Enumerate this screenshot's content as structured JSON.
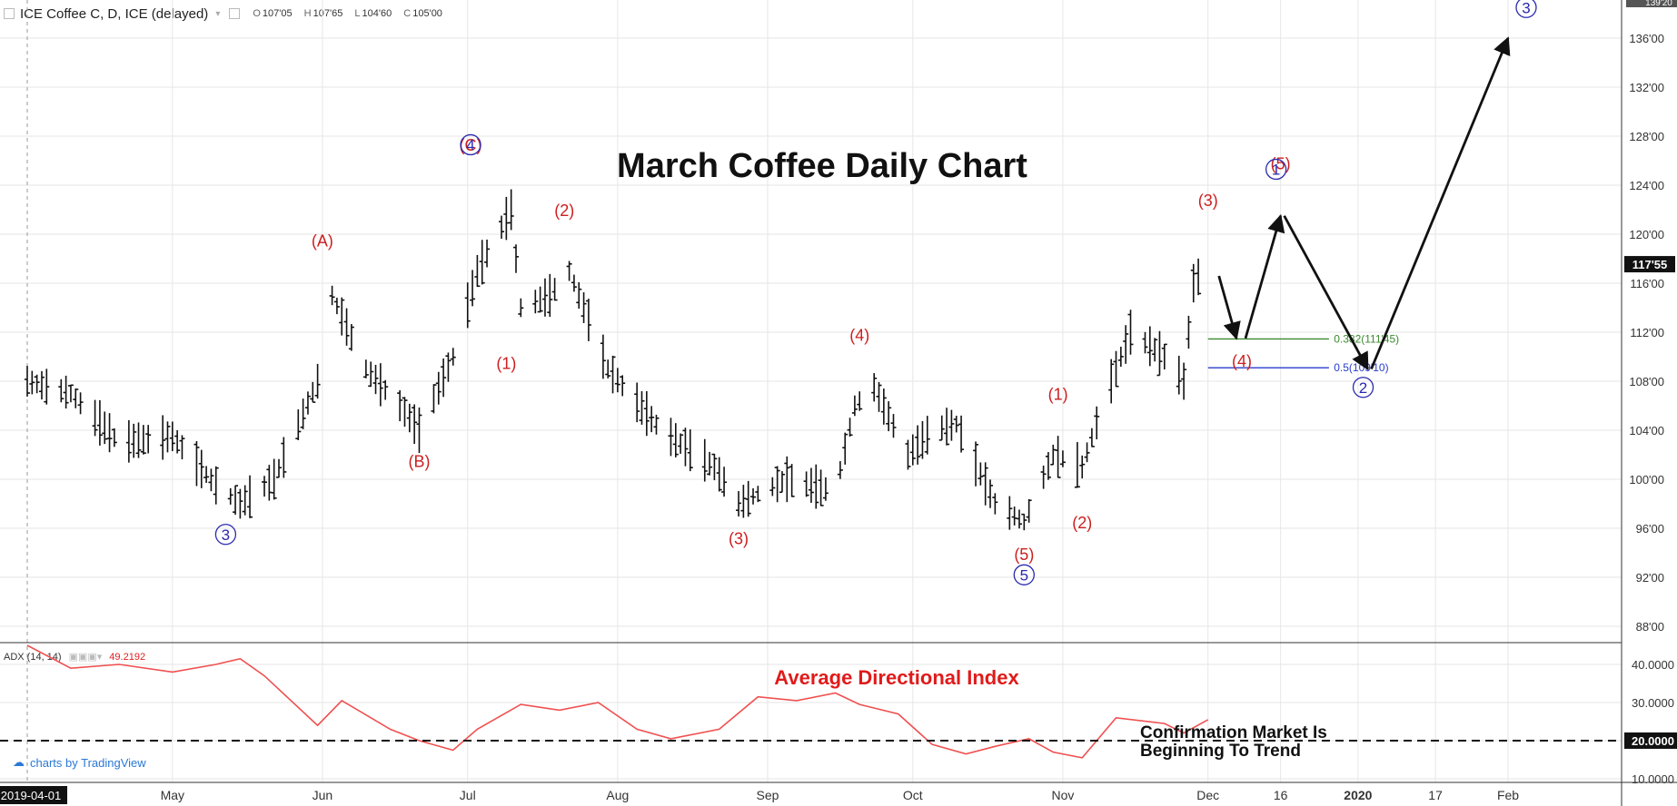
{
  "header": {
    "collapse_icon": "minus-box-icon",
    "symbol": "ICE Coffee C, D, ICE (delayed)",
    "ohlc": {
      "o_label": "O",
      "o": "107'05",
      "h_label": "H",
      "h": "107'65",
      "l_label": "L",
      "l": "104'60",
      "c_label": "C",
      "c": "105'00"
    }
  },
  "price_labels": [
    "136'00",
    "132'00",
    "128'00",
    "124'00",
    "120'00",
    "116'00",
    "112'00",
    "108'00",
    "104'00",
    "100'00",
    "96'00",
    "92'00",
    "88'00"
  ],
  "top_label": "139'20",
  "last_price": "117'55",
  "adx_header": {
    "name": "ADX (14, 14)",
    "value": "49.2192"
  },
  "adx_labels": [
    "40.0000",
    "30.0000",
    "20.0000",
    "10.0000"
  ],
  "time_labels": [
    "2019-04-01",
    "May",
    "Jun",
    "Jul",
    "Aug",
    "Sep",
    "Oct",
    "Nov",
    "Dec",
    "16",
    "2020",
    "17",
    "Feb"
  ],
  "title": "March Coffee Daily Chart",
  "adx_title": "Average Directional Index",
  "note_lines": [
    "Confirmation Market Is",
    "Beginning To Trend"
  ],
  "fib": [
    {
      "label": "0.382(111'45)",
      "color": "#3b8a2e"
    },
    {
      "label": "0.5(109'10)",
      "color": "#2a3ccc"
    }
  ],
  "wave_labels_red": [
    "(A)",
    "(B)",
    "(C)",
    "(1)",
    "(2)",
    "(3)",
    "(4)",
    "(5)",
    "(1)",
    "(2)",
    "(3)",
    "(4)",
    "(5)"
  ],
  "wave_labels_blue": [
    "3",
    "4",
    "5",
    "1",
    "2",
    "3"
  ],
  "logo_text": "charts by TradingView",
  "colors": {
    "red": "#cc1f1f",
    "blue": "#2a2ab0",
    "adx": "#f05050",
    "grid": "#e6e6e6"
  },
  "chart_data": [
    {
      "type": "ohlc",
      "title": "March Coffee Daily Chart",
      "series": [
        {
          "name": "ICE Coffee C",
          "keypoints": [
            {
              "x": "2019-04-01",
              "y": 108
            },
            {
              "x": "2019-04-10",
              "y": 107
            },
            {
              "x": "2019-04-20",
              "y": 103
            },
            {
              "x": "2019-05-01",
              "y": 103.5
            },
            {
              "x": "2019-05-10",
              "y": 99.5
            },
            {
              "x": "2019-05-15",
              "y": 98
            },
            {
              "x": "2019-05-22",
              "y": 100
            },
            {
              "x": "2019-05-31",
              "y": 108
            },
            {
              "x": "2019-06-03",
              "y": 115
            },
            {
              "x": "2019-06-10",
              "y": 109
            },
            {
              "x": "2019-06-17",
              "y": 106
            },
            {
              "x": "2019-06-21",
              "y": 104
            },
            {
              "x": "2019-06-28",
              "y": 110
            },
            {
              "x": "2019-07-03",
              "y": 117
            },
            {
              "x": "2019-07-10",
              "y": 122
            },
            {
              "x": "2019-07-12",
              "y": 114
            },
            {
              "x": "2019-07-18",
              "y": 115
            },
            {
              "x": "2019-07-22",
              "y": 117
            },
            {
              "x": "2019-07-30",
              "y": 109
            },
            {
              "x": "2019-08-10",
              "y": 104
            },
            {
              "x": "2019-08-21",
              "y": 101
            },
            {
              "x": "2019-08-26",
              "y": 98
            },
            {
              "x": "2019-09-05",
              "y": 100
            },
            {
              "x": "2019-09-15",
              "y": 99
            },
            {
              "x": "2019-09-19",
              "y": 106
            },
            {
              "x": "2019-09-23",
              "y": 107.5
            },
            {
              "x": "2019-09-30",
              "y": 102
            },
            {
              "x": "2019-10-05",
              "y": 104
            },
            {
              "x": "2019-10-10",
              "y": 104.5
            },
            {
              "x": "2019-10-18",
              "y": 98
            },
            {
              "x": "2019-10-24",
              "y": 96.5
            },
            {
              "x": "2019-10-30",
              "y": 102
            },
            {
              "x": "2019-11-05",
              "y": 101
            },
            {
              "x": "2019-11-10",
              "y": 107
            },
            {
              "x": "2019-11-15",
              "y": 112
            },
            {
              "x": "2019-11-22",
              "y": 110
            },
            {
              "x": "2019-11-26",
              "y": 108
            },
            {
              "x": "2019-11-28",
              "y": 116
            },
            {
              "x": "2019-12-01",
              "y": 117.55
            }
          ]
        }
      ],
      "projection": [
        {
          "x": "2019-12-01",
          "y": 116
        },
        {
          "x": "2019-12-08",
          "y": 111.5
        },
        {
          "x": "2019-12-16",
          "y": 121.5
        },
        {
          "x": "2020-01-03",
          "y": 109
        },
        {
          "x": "2020-02-01",
          "y": 136
        }
      ],
      "fib_levels": [
        {
          "ratio": 0.382,
          "value": 111.45
        },
        {
          "ratio": 0.5,
          "value": 109.1
        }
      ],
      "ylim": [
        85,
        139.2
      ]
    },
    {
      "type": "line",
      "series": [
        {
          "name": "ADX (14, 14)",
          "values": [
            {
              "x": "2019-04-01",
              "y": 45
            },
            {
              "x": "2019-04-10",
              "y": 39
            },
            {
              "x": "2019-04-20",
              "y": 40
            },
            {
              "x": "2019-05-01",
              "y": 38
            },
            {
              "x": "2019-05-10",
              "y": 40
            },
            {
              "x": "2019-05-15",
              "y": 41.5
            },
            {
              "x": "2019-05-20",
              "y": 37
            },
            {
              "x": "2019-05-31",
              "y": 24
            },
            {
              "x": "2019-06-05",
              "y": 30.5
            },
            {
              "x": "2019-06-15",
              "y": 23
            },
            {
              "x": "2019-06-21",
              "y": 20
            },
            {
              "x": "2019-06-28",
              "y": 17.5
            },
            {
              "x": "2019-07-03",
              "y": 23
            },
            {
              "x": "2019-07-12",
              "y": 29.5
            },
            {
              "x": "2019-07-20",
              "y": 28
            },
            {
              "x": "2019-07-28",
              "y": 30
            },
            {
              "x": "2019-08-05",
              "y": 23
            },
            {
              "x": "2019-08-12",
              "y": 20.5
            },
            {
              "x": "2019-08-22",
              "y": 23
            },
            {
              "x": "2019-08-30",
              "y": 31.5
            },
            {
              "x": "2019-09-07",
              "y": 30.5
            },
            {
              "x": "2019-09-15",
              "y": 32.5
            },
            {
              "x": "2019-09-20",
              "y": 29.5
            },
            {
              "x": "2019-09-28",
              "y": 27
            },
            {
              "x": "2019-10-05",
              "y": 19
            },
            {
              "x": "2019-10-12",
              "y": 16.5
            },
            {
              "x": "2019-10-18",
              "y": 18.5
            },
            {
              "x": "2019-10-25",
              "y": 20.5
            },
            {
              "x": "2019-10-30",
              "y": 17
            },
            {
              "x": "2019-11-05",
              "y": 15.5
            },
            {
              "x": "2019-11-12",
              "y": 26
            },
            {
              "x": "2019-11-22",
              "y": 24.5
            },
            {
              "x": "2019-11-26",
              "y": 22
            },
            {
              "x": "2019-12-01",
              "y": 25.5
            }
          ]
        }
      ],
      "reference_line": 20,
      "ylim": [
        8,
        45
      ]
    }
  ]
}
